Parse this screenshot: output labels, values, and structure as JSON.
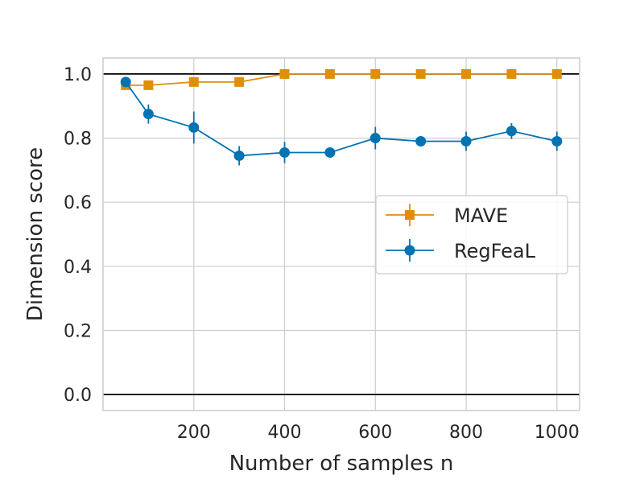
{
  "chart_data": {
    "type": "line",
    "title": "",
    "xlabel": "Number of samples n",
    "ylabel": "Dimension score",
    "xlim": [
      0,
      1050
    ],
    "ylim": [
      -0.05,
      1.05
    ],
    "xticks": [
      200,
      400,
      600,
      800,
      1000
    ],
    "yticks": [
      0.0,
      0.2,
      0.4,
      0.6,
      0.8,
      1.0
    ],
    "ytick_labels": [
      "0.0",
      "0.2",
      "0.4",
      "0.6",
      "0.8",
      "1.0"
    ],
    "reference_lines_y": [
      0.0,
      1.0
    ],
    "grid": true,
    "legend_position": "center-right",
    "series": [
      {
        "name": "MAVE",
        "color": "#de8f05",
        "marker": "square",
        "x": [
          50,
          100,
          200,
          300,
          400,
          500,
          600,
          700,
          800,
          900,
          1000
        ],
        "y": [
          0.965,
          0.965,
          0.975,
          0.975,
          1.0,
          1.0,
          1.0,
          1.0,
          1.0,
          1.0,
          1.0
        ],
        "err": [
          0.005,
          0.005,
          0.005,
          0.005,
          0.0,
          0.0,
          0.0,
          0.0,
          0.0,
          0.0,
          0.0
        ]
      },
      {
        "name": "RegFeaL",
        "color": "#0173b2",
        "marker": "circle",
        "x": [
          50,
          100,
          200,
          300,
          400,
          500,
          600,
          700,
          800,
          900,
          1000
        ],
        "y": [
          0.975,
          0.875,
          0.833,
          0.745,
          0.755,
          0.755,
          0.8,
          0.79,
          0.79,
          0.822,
          0.79
        ],
        "err": [
          0.01,
          0.03,
          0.05,
          0.03,
          0.033,
          0.0,
          0.035,
          0.015,
          0.03,
          0.025,
          0.03
        ]
      }
    ]
  }
}
